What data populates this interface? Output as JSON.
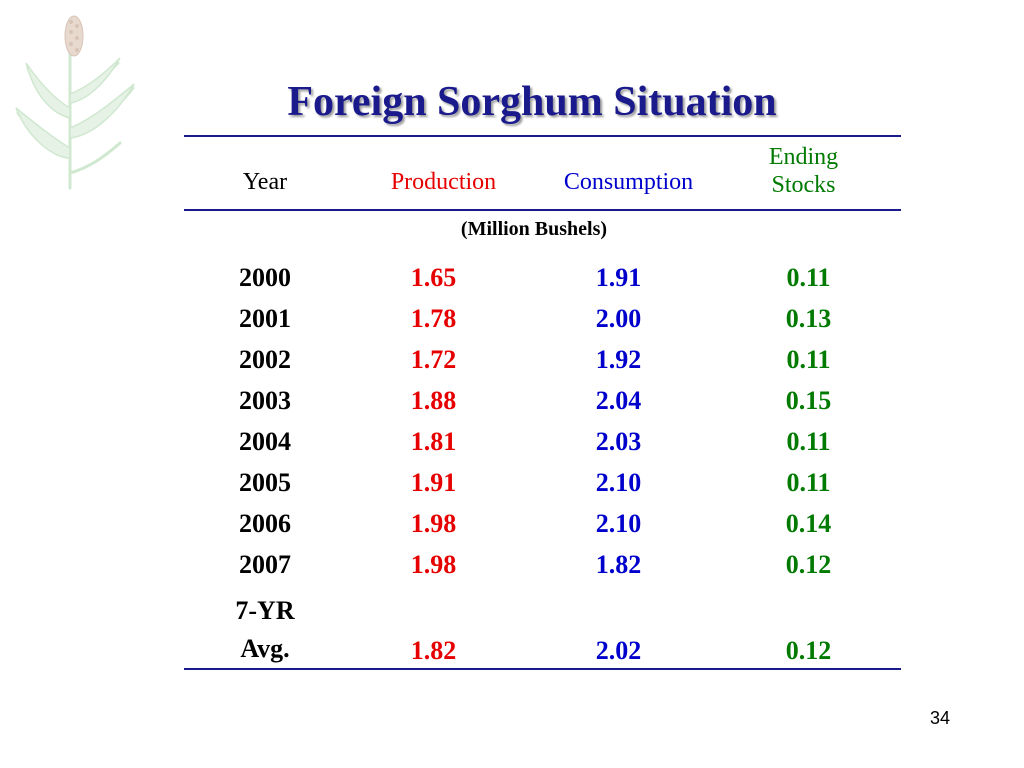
{
  "title": "Foreign Sorghum Situation",
  "header": {
    "year": "Year",
    "production": "Production",
    "consumption": "Consumption",
    "ending_stocks_line1": "Ending",
    "ending_stocks_line2": "Stocks"
  },
  "units": "(Million Bushels)",
  "rows": [
    {
      "year": "2000",
      "production": "1.65",
      "consumption": "1.91",
      "ending_stocks": "0.11"
    },
    {
      "year": "2001",
      "production": "1.78",
      "consumption": "2.00",
      "ending_stocks": "0.13"
    },
    {
      "year": "2002",
      "production": "1.72",
      "consumption": "1.92",
      "ending_stocks": "0.11"
    },
    {
      "year": "2003",
      "production": "1.88",
      "consumption": "2.04",
      "ending_stocks": "0.15"
    },
    {
      "year": "2004",
      "production": "1.81",
      "consumption": "2.03",
      "ending_stocks": "0.11"
    },
    {
      "year": "2005",
      "production": "1.91",
      "consumption": "2.10",
      "ending_stocks": "0.11"
    },
    {
      "year": "2006",
      "production": "1.98",
      "consumption": "2.10",
      "ending_stocks": "0.14"
    },
    {
      "year": "2007",
      "production": "1.98",
      "consumption": "1.82",
      "ending_stocks": "0.12"
    }
  ],
  "average": {
    "label_line1": "7-YR",
    "label_line2": "Avg.",
    "production": "1.82",
    "consumption": "2.02",
    "ending_stocks": "0.12"
  },
  "page_number": "34",
  "colors": {
    "title": "#1a1a8c",
    "production": "#e60000",
    "consumption": "#0000cc",
    "ending_stocks": "#007a00"
  },
  "icons": {
    "logo": "sorghum-plant-icon"
  }
}
